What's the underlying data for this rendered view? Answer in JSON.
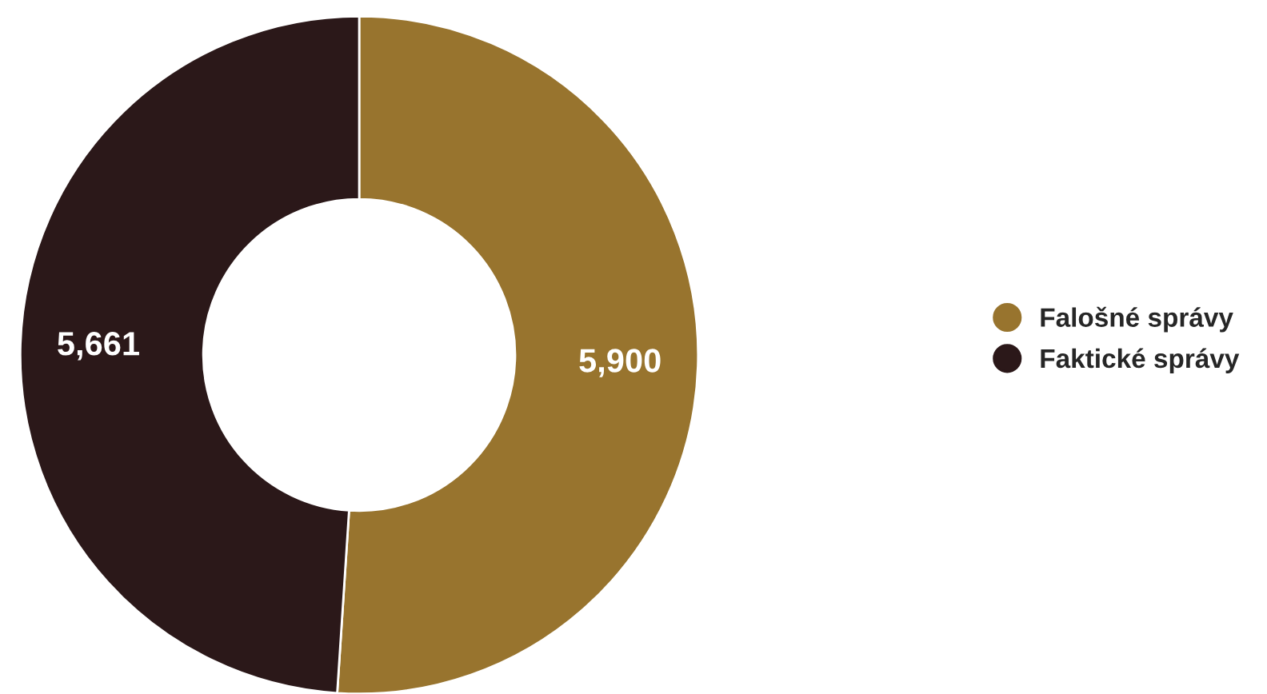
{
  "chart_data": {
    "type": "donut",
    "categories": [
      "Falošné správy",
      "Faktické správy"
    ],
    "values": [
      5900,
      5661
    ],
    "colors": [
      "#98742e",
      "#2b1819"
    ],
    "value_labels": [
      "5,900",
      "5,661"
    ],
    "legend": "right"
  }
}
